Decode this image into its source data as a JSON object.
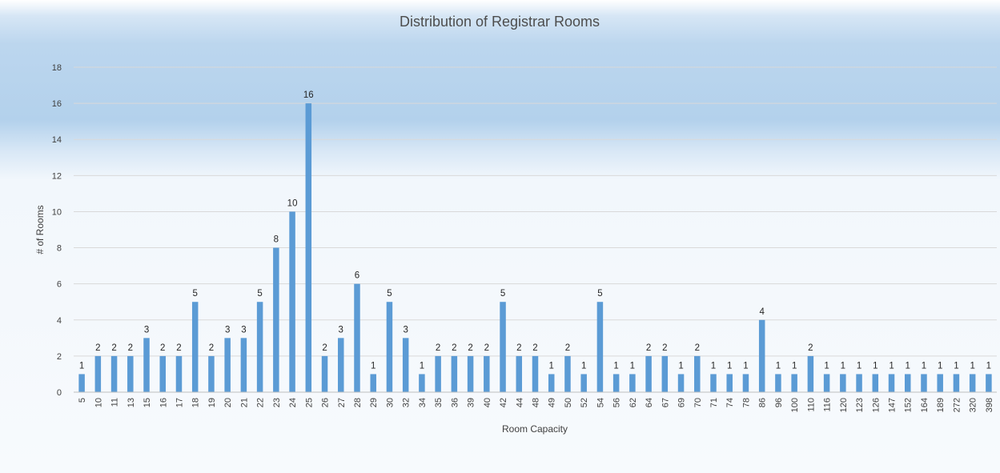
{
  "chart_data": {
    "type": "bar",
    "title": "Distribution of Registrar Rooms",
    "xlabel": "Room Capacity",
    "ylabel": "# of Rooms",
    "ylim": [
      0,
      18
    ],
    "yticks": [
      0,
      2,
      4,
      6,
      8,
      10,
      12,
      14,
      16,
      18
    ],
    "grid": true,
    "legend": "none",
    "bar_color": "#5b9bd5",
    "categories": [
      "5",
      "10",
      "11",
      "13",
      "15",
      "16",
      "17",
      "18",
      "19",
      "20",
      "21",
      "22",
      "23",
      "24",
      "25",
      "26",
      "27",
      "28",
      "29",
      "30",
      "32",
      "34",
      "35",
      "36",
      "39",
      "40",
      "42",
      "44",
      "48",
      "49",
      "50",
      "52",
      "54",
      "56",
      "62",
      "64",
      "67",
      "69",
      "70",
      "71",
      "74",
      "78",
      "86",
      "96",
      "100",
      "110",
      "116",
      "120",
      "123",
      "126",
      "147",
      "152",
      "164",
      "189",
      "272",
      "320",
      "398"
    ],
    "values": [
      1,
      2,
      2,
      2,
      3,
      2,
      2,
      5,
      2,
      3,
      3,
      5,
      8,
      10,
      16,
      2,
      3,
      6,
      1,
      5,
      3,
      1,
      2,
      2,
      2,
      2,
      5,
      2,
      2,
      1,
      2,
      1,
      5,
      1,
      1,
      2,
      2,
      1,
      2,
      1,
      1,
      1,
      4,
      1,
      1,
      2,
      1,
      1,
      1,
      1,
      1,
      1,
      1,
      1,
      1,
      1,
      1
    ],
    "data_labels": true
  }
}
